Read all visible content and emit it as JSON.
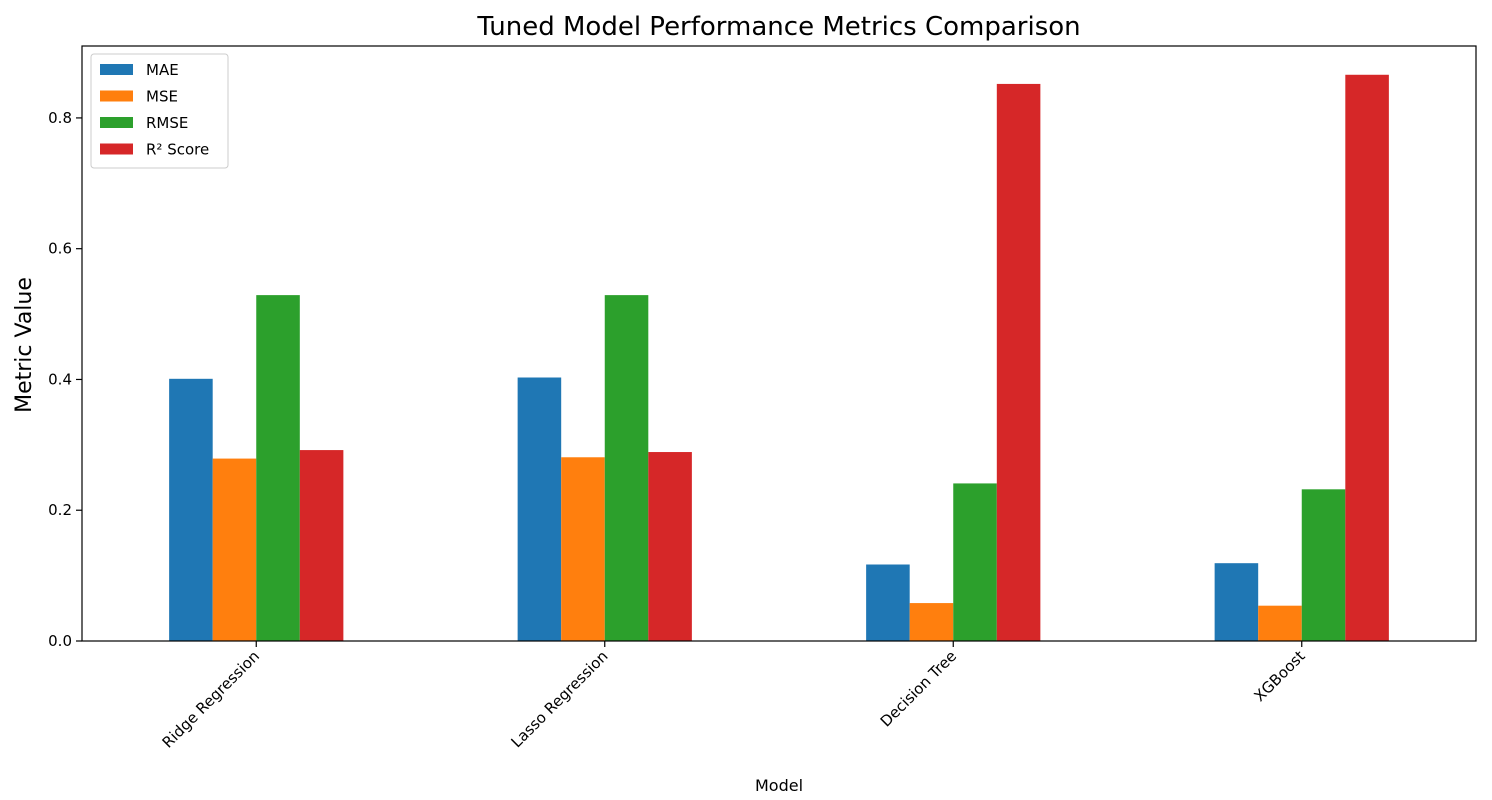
{
  "chart_data": {
    "type": "bar",
    "title": "Tuned Model Performance Metrics Comparison",
    "xlabel": "Model",
    "ylabel": "Metric Value",
    "categories": [
      "Ridge Regression",
      "Lasso Regression",
      "Decision Tree",
      "XGBoost"
    ],
    "series": [
      {
        "name": "MAE",
        "color": "#1f77b4",
        "values": [
          0.401,
          0.403,
          0.117,
          0.119
        ]
      },
      {
        "name": "MSE",
        "color": "#ff7f0e",
        "values": [
          0.279,
          0.281,
          0.058,
          0.054
        ]
      },
      {
        "name": "RMSE",
        "color": "#2ca02c",
        "values": [
          0.529,
          0.529,
          0.241,
          0.232
        ]
      },
      {
        "name": "R² Score",
        "color": "#d62728",
        "values": [
          0.292,
          0.289,
          0.852,
          0.866
        ]
      }
    ],
    "ylim": [
      0,
      0.91
    ],
    "yticks": [
      0.0,
      0.2,
      0.4,
      0.6,
      0.8
    ],
    "ytick_labels": [
      "0.0",
      "0.2",
      "0.4",
      "0.6",
      "0.8"
    ],
    "xtick_rotation": "45 degrees",
    "legend_position": "top-left",
    "grid": false
  }
}
